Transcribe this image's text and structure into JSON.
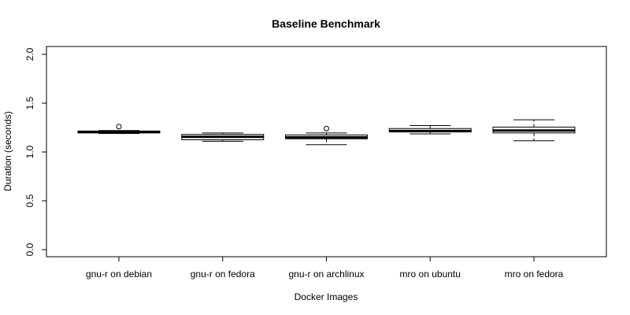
{
  "chart_data": {
    "type": "boxplot",
    "title": "Baseline Benchmark",
    "xlabel": "Docker Images",
    "ylabel": "Duration (seconds)",
    "ylim": [
      0,
      2.0
    ],
    "yticks": [
      0.0,
      0.5,
      1.0,
      1.5,
      2.0
    ],
    "ytick_labels": [
      "0.0",
      "0.5",
      "1.0",
      "1.5",
      "2.0"
    ],
    "grid": false,
    "categories": [
      "gnu-r on debian",
      "gnu-r on fedora",
      "gnu-r on archlinux",
      "mro on ubuntu",
      "mro on fedora"
    ],
    "boxes": [
      {
        "category": "gnu-r on debian",
        "whisker_low": 1.19,
        "q1": 1.195,
        "median": 1.205,
        "q3": 1.215,
        "whisker_high": 1.22,
        "outliers": [
          1.26
        ]
      },
      {
        "category": "gnu-r on fedora",
        "whisker_low": 1.11,
        "q1": 1.125,
        "median": 1.155,
        "q3": 1.18,
        "whisker_high": 1.195,
        "outliers": []
      },
      {
        "category": "gnu-r on archlinux",
        "whisker_low": 1.075,
        "q1": 1.135,
        "median": 1.15,
        "q3": 1.175,
        "whisker_high": 1.195,
        "outliers": [
          1.24
        ]
      },
      {
        "category": "mro on ubuntu",
        "whisker_low": 1.185,
        "q1": 1.205,
        "median": 1.215,
        "q3": 1.24,
        "whisker_high": 1.27,
        "outliers": []
      },
      {
        "category": "mro on fedora",
        "whisker_low": 1.115,
        "q1": 1.195,
        "median": 1.22,
        "q3": 1.255,
        "whisker_high": 1.33,
        "outliers": []
      }
    ]
  }
}
